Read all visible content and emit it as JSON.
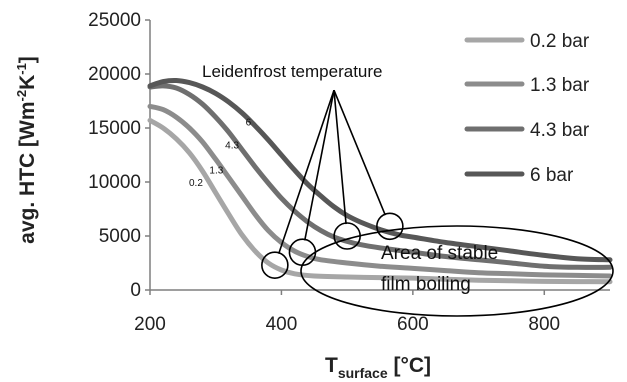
{
  "chart_data": {
    "type": "line",
    "title": "",
    "xlabel": "T",
    "xlabel_sub": "surface",
    "xlabel_unit": " [°C]",
    "ylabel_main": "avg. HTC [Wm",
    "ylabel_sup1": "-2",
    "ylabel_mid": "K",
    "ylabel_sup2": "-1",
    "ylabel_end": "]",
    "xlim": [
      200,
      900
    ],
    "ylim": [
      0,
      25000
    ],
    "xticks": [
      200,
      400,
      600,
      800
    ],
    "yticks": [
      0,
      5000,
      10000,
      15000,
      20000,
      25000
    ],
    "grid": false,
    "legend_position": "right",
    "series": [
      {
        "name": "0.2 bar",
        "curve_label": "0.2",
        "color": "#a6a6a6",
        "x": [
          200,
          220,
          240,
          260,
          280,
          300,
          320,
          340,
          360,
          380,
          400,
          420,
          450,
          500,
          550,
          600,
          650,
          700,
          750,
          800,
          850,
          900
        ],
        "y": [
          15700,
          15000,
          14000,
          12700,
          11000,
          9000,
          7000,
          5100,
          3600,
          2500,
          1850,
          1500,
          1300,
          1200,
          1150,
          1100,
          1000,
          900,
          850,
          800,
          780,
          770
        ]
      },
      {
        "name": "1.3 bar",
        "curve_label": "1.3",
        "color": "#8c8c8c",
        "x": [
          200,
          220,
          240,
          260,
          280,
          300,
          320,
          340,
          360,
          380,
          400,
          420,
          440,
          460,
          500,
          550,
          600,
          650,
          700,
          750,
          800,
          850,
          900
        ],
        "y": [
          17000,
          16700,
          16000,
          15000,
          13700,
          12100,
          10400,
          8700,
          7000,
          5500,
          4400,
          3600,
          3100,
          2800,
          2500,
          2200,
          2000,
          1800,
          1600,
          1500,
          1400,
          1350,
          1300
        ]
      },
      {
        "name": "4.3 bar",
        "curve_label": "4.3",
        "color": "#6f6f6f",
        "x": [
          200,
          220,
          240,
          260,
          280,
          300,
          320,
          340,
          360,
          380,
          400,
          420,
          440,
          460,
          480,
          500,
          520,
          550,
          600,
          650,
          700,
          750,
          800,
          850,
          900
        ],
        "y": [
          18800,
          18900,
          18700,
          18100,
          17200,
          16000,
          14600,
          13000,
          11400,
          9900,
          8500,
          7300,
          6300,
          5500,
          4900,
          4500,
          4200,
          3900,
          3500,
          3100,
          2800,
          2500,
          2200,
          2100,
          2100
        ]
      },
      {
        "name": "6 bar",
        "curve_label": "6",
        "color": "#575757",
        "x": [
          200,
          220,
          240,
          260,
          280,
          300,
          320,
          340,
          360,
          380,
          400,
          420,
          440,
          460,
          480,
          500,
          520,
          550,
          580,
          600,
          650,
          700,
          750,
          800,
          850,
          900
        ],
        "y": [
          18900,
          19300,
          19400,
          19200,
          18800,
          18200,
          17400,
          16400,
          15200,
          13900,
          12500,
          11100,
          9800,
          8700,
          7700,
          6900,
          6300,
          5600,
          5100,
          4900,
          4400,
          4000,
          3600,
          3200,
          2900,
          2800
        ]
      }
    ],
    "annotations": {
      "leidenfrost_label": "Leidenfrost temperature",
      "leidenfrost_points": [
        {
          "x": 390,
          "y": 2300
        },
        {
          "x": 432,
          "y": 3500
        },
        {
          "x": 500,
          "y": 5000
        },
        {
          "x": 565,
          "y": 5900
        }
      ],
      "leidenfrost_apex": {
        "x": 480,
        "y": 18500
      },
      "film_boiling_label_line1": "Area of stable",
      "film_boiling_label_line2": "film boiling"
    }
  }
}
